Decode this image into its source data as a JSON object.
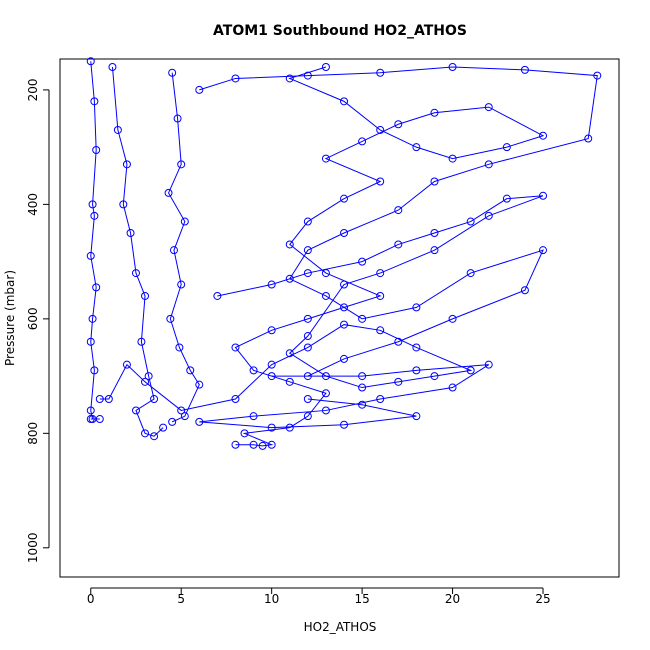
{
  "chart_data": {
    "type": "scatter_line",
    "title": "ATOM1 Southbound HO2_ATHOS",
    "x_label": "HO2_ATHOS",
    "y_label": "Pressure (mbar)",
    "xlim": [
      -1.7,
      29.2
    ],
    "xticks": [
      0,
      5,
      10,
      15,
      20,
      25
    ],
    "ylim": [
      146,
      1051
    ],
    "yticks": [
      200,
      400,
      600,
      800,
      1000
    ],
    "y_reversed": true,
    "series": [
      {
        "color": "#0000ff",
        "x": [
          0,
          0.2,
          0.3,
          0.1,
          0.2,
          0,
          0.3,
          0.1,
          0,
          0.2,
          0,
          0.1,
          0.5,
          0,
          null,
          1.2,
          1.5,
          2,
          1.8,
          2.2,
          2.5,
          3,
          2.8,
          3.2,
          3.5,
          2.5,
          3,
          3.5,
          4,
          null,
          4.5,
          4.8,
          5,
          4.3,
          5.2,
          4.6,
          5,
          4.4,
          4.9,
          5.5,
          6,
          5.2,
          4.5,
          null,
          6,
          8,
          12,
          16,
          20,
          24,
          28,
          27.5,
          22,
          19,
          17,
          14,
          12,
          11,
          13,
          15,
          18,
          21,
          25,
          24,
          20,
          17,
          14,
          12,
          10,
          15,
          18,
          22,
          20,
          16,
          13,
          9,
          6,
          10,
          14,
          18,
          15,
          12,
          null,
          8,
          9,
          9.5,
          10,
          8.5,
          11,
          12,
          13,
          11,
          9,
          8,
          10,
          12,
          14,
          16,
          13,
          11,
          12,
          14,
          16,
          13,
          15,
          17,
          19,
          22,
          25,
          23,
          20,
          18,
          16,
          14,
          11,
          13,
          null,
          7,
          10,
          12,
          15,
          17,
          19,
          21,
          23,
          25,
          22,
          19,
          16,
          14,
          12,
          11,
          13,
          15,
          17,
          19,
          21,
          18,
          16,
          14,
          12,
          10,
          8,
          5,
          3,
          2,
          1,
          0.5
        ],
        "values": [
          150,
          220,
          305,
          400,
          420,
          490,
          545,
          600,
          640,
          690,
          760,
          775,
          775,
          775,
          null,
          160,
          270,
          330,
          400,
          450,
          520,
          560,
          640,
          700,
          740,
          760,
          800,
          805,
          790,
          null,
          170,
          250,
          330,
          380,
          430,
          480,
          540,
          600,
          650,
          690,
          715,
          770,
          780,
          null,
          200,
          180,
          175,
          170,
          160,
          165,
          175,
          285,
          330,
          360,
          410,
          450,
          480,
          530,
          560,
          600,
          580,
          520,
          480,
          550,
          600,
          640,
          670,
          700,
          700,
          700,
          690,
          680,
          720,
          740,
          760,
          770,
          780,
          790,
          785,
          770,
          750,
          740,
          null,
          820,
          820,
          822,
          820,
          800,
          790,
          770,
          730,
          710,
          690,
          650,
          620,
          600,
          580,
          560,
          520,
          470,
          430,
          390,
          360,
          320,
          290,
          260,
          240,
          230,
          280,
          300,
          320,
          300,
          270,
          220,
          180,
          160,
          null,
          560,
          540,
          520,
          500,
          470,
          450,
          430,
          390,
          385,
          420,
          480,
          520,
          540,
          630,
          660,
          700,
          720,
          710,
          700,
          690,
          650,
          620,
          610,
          650,
          680,
          740,
          760,
          710,
          680,
          740,
          740
        ]
      }
    ]
  }
}
